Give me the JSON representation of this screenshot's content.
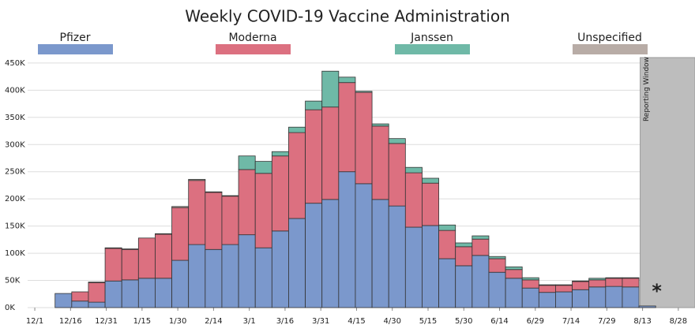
{
  "chart_data": {
    "type": "stacked_bar",
    "title": "Weekly COVID-19 Vaccine Administration",
    "x": [
      12,
      19,
      26,
      33,
      40,
      47,
      54,
      61,
      68,
      75,
      82,
      89,
      96,
      103,
      110,
      117,
      124,
      131,
      138,
      145,
      152,
      159,
      166,
      173,
      180,
      187,
      194,
      201,
      208,
      215,
      222,
      229,
      236,
      243,
      250,
      257
    ],
    "bar_width": 7,
    "series": [
      {
        "name": "Pfizer",
        "color": "#7b98cc",
        "values": [
          26000,
          12000,
          10000,
          49000,
          51000,
          54000,
          54000,
          87000,
          116000,
          107000,
          116000,
          134000,
          110000,
          141000,
          164000,
          192000,
          199000,
          250000,
          228000,
          199000,
          187000,
          148000,
          151000,
          90000,
          77000,
          96000,
          65000,
          54000,
          36000,
          28000,
          29000,
          33000,
          38000,
          39000,
          38000,
          3000
        ]
      },
      {
        "name": "Moderna",
        "color": "#dc7080",
        "values": [
          0,
          17000,
          36000,
          60000,
          56000,
          74000,
          81000,
          97000,
          118000,
          105000,
          89000,
          120000,
          137000,
          138000,
          158000,
          172000,
          170000,
          164000,
          168000,
          135000,
          115000,
          100000,
          78000,
          52000,
          35000,
          30000,
          25000,
          16000,
          15000,
          13000,
          12000,
          15000,
          13000,
          15000,
          16000,
          0
        ]
      },
      {
        "name": "Janssen",
        "color": "#6fb9a7",
        "values": [
          0,
          0,
          0,
          0,
          0,
          0,
          0,
          0,
          0,
          0,
          0,
          25000,
          22000,
          8000,
          10000,
          16000,
          66000,
          10000,
          2000,
          4000,
          9000,
          10000,
          9000,
          10000,
          7000,
          6000,
          4000,
          5000,
          4000,
          1000,
          1000,
          1000,
          3000,
          1000,
          1000,
          0
        ]
      },
      {
        "name": "Unspecified",
        "color": "#b8aca6",
        "values": [
          0,
          0,
          1000,
          1000,
          1000,
          0,
          1000,
          2000,
          2000,
          1000,
          1000,
          0,
          0,
          0,
          0,
          0,
          0,
          0,
          0,
          0,
          0,
          0,
          0,
          0,
          0,
          0,
          0,
          0,
          0,
          0,
          0,
          0,
          0,
          0,
          0,
          0
        ]
      }
    ],
    "xlim": [
      -3,
      277
    ],
    "xticks": [
      {
        "value": 0,
        "label": "12/1"
      },
      {
        "value": 15,
        "label": "12/16"
      },
      {
        "value": 30,
        "label": "12/31"
      },
      {
        "value": 45,
        "label": "1/15"
      },
      {
        "value": 60,
        "label": "1/30"
      },
      {
        "value": 75,
        "label": "2/14"
      },
      {
        "value": 90,
        "label": "3/1"
      },
      {
        "value": 105,
        "label": "3/16"
      },
      {
        "value": 120,
        "label": "3/31"
      },
      {
        "value": 135,
        "label": "4/15"
      },
      {
        "value": 150,
        "label": "4/30"
      },
      {
        "value": 165,
        "label": "5/15"
      },
      {
        "value": 180,
        "label": "5/30"
      },
      {
        "value": 195,
        "label": "6/14"
      },
      {
        "value": 210,
        "label": "6/29"
      },
      {
        "value": 225,
        "label": "7/14"
      },
      {
        "value": 240,
        "label": "7/29"
      },
      {
        "value": 255,
        "label": "8/13"
      },
      {
        "value": 270,
        "label": "8/28"
      }
    ],
    "ylim": [
      0,
      460000
    ],
    "yticks": [
      {
        "value": 0,
        "label": "0K"
      },
      {
        "value": 50000,
        "label": "50K"
      },
      {
        "value": 100000,
        "label": "100K"
      },
      {
        "value": 150000,
        "label": "150K"
      },
      {
        "value": 200000,
        "label": "200K"
      },
      {
        "value": 250000,
        "label": "250K"
      },
      {
        "value": 300000,
        "label": "300K"
      },
      {
        "value": 350000,
        "label": "350K"
      },
      {
        "value": 400000,
        "label": "400K"
      },
      {
        "value": 450000,
        "label": "450K"
      }
    ],
    "grid": true,
    "reporting_window": {
      "label": "Reporting Window",
      "start": 254,
      "color": "#bdbdbd"
    },
    "asterisk": {
      "text": "*",
      "x": 261
    }
  }
}
